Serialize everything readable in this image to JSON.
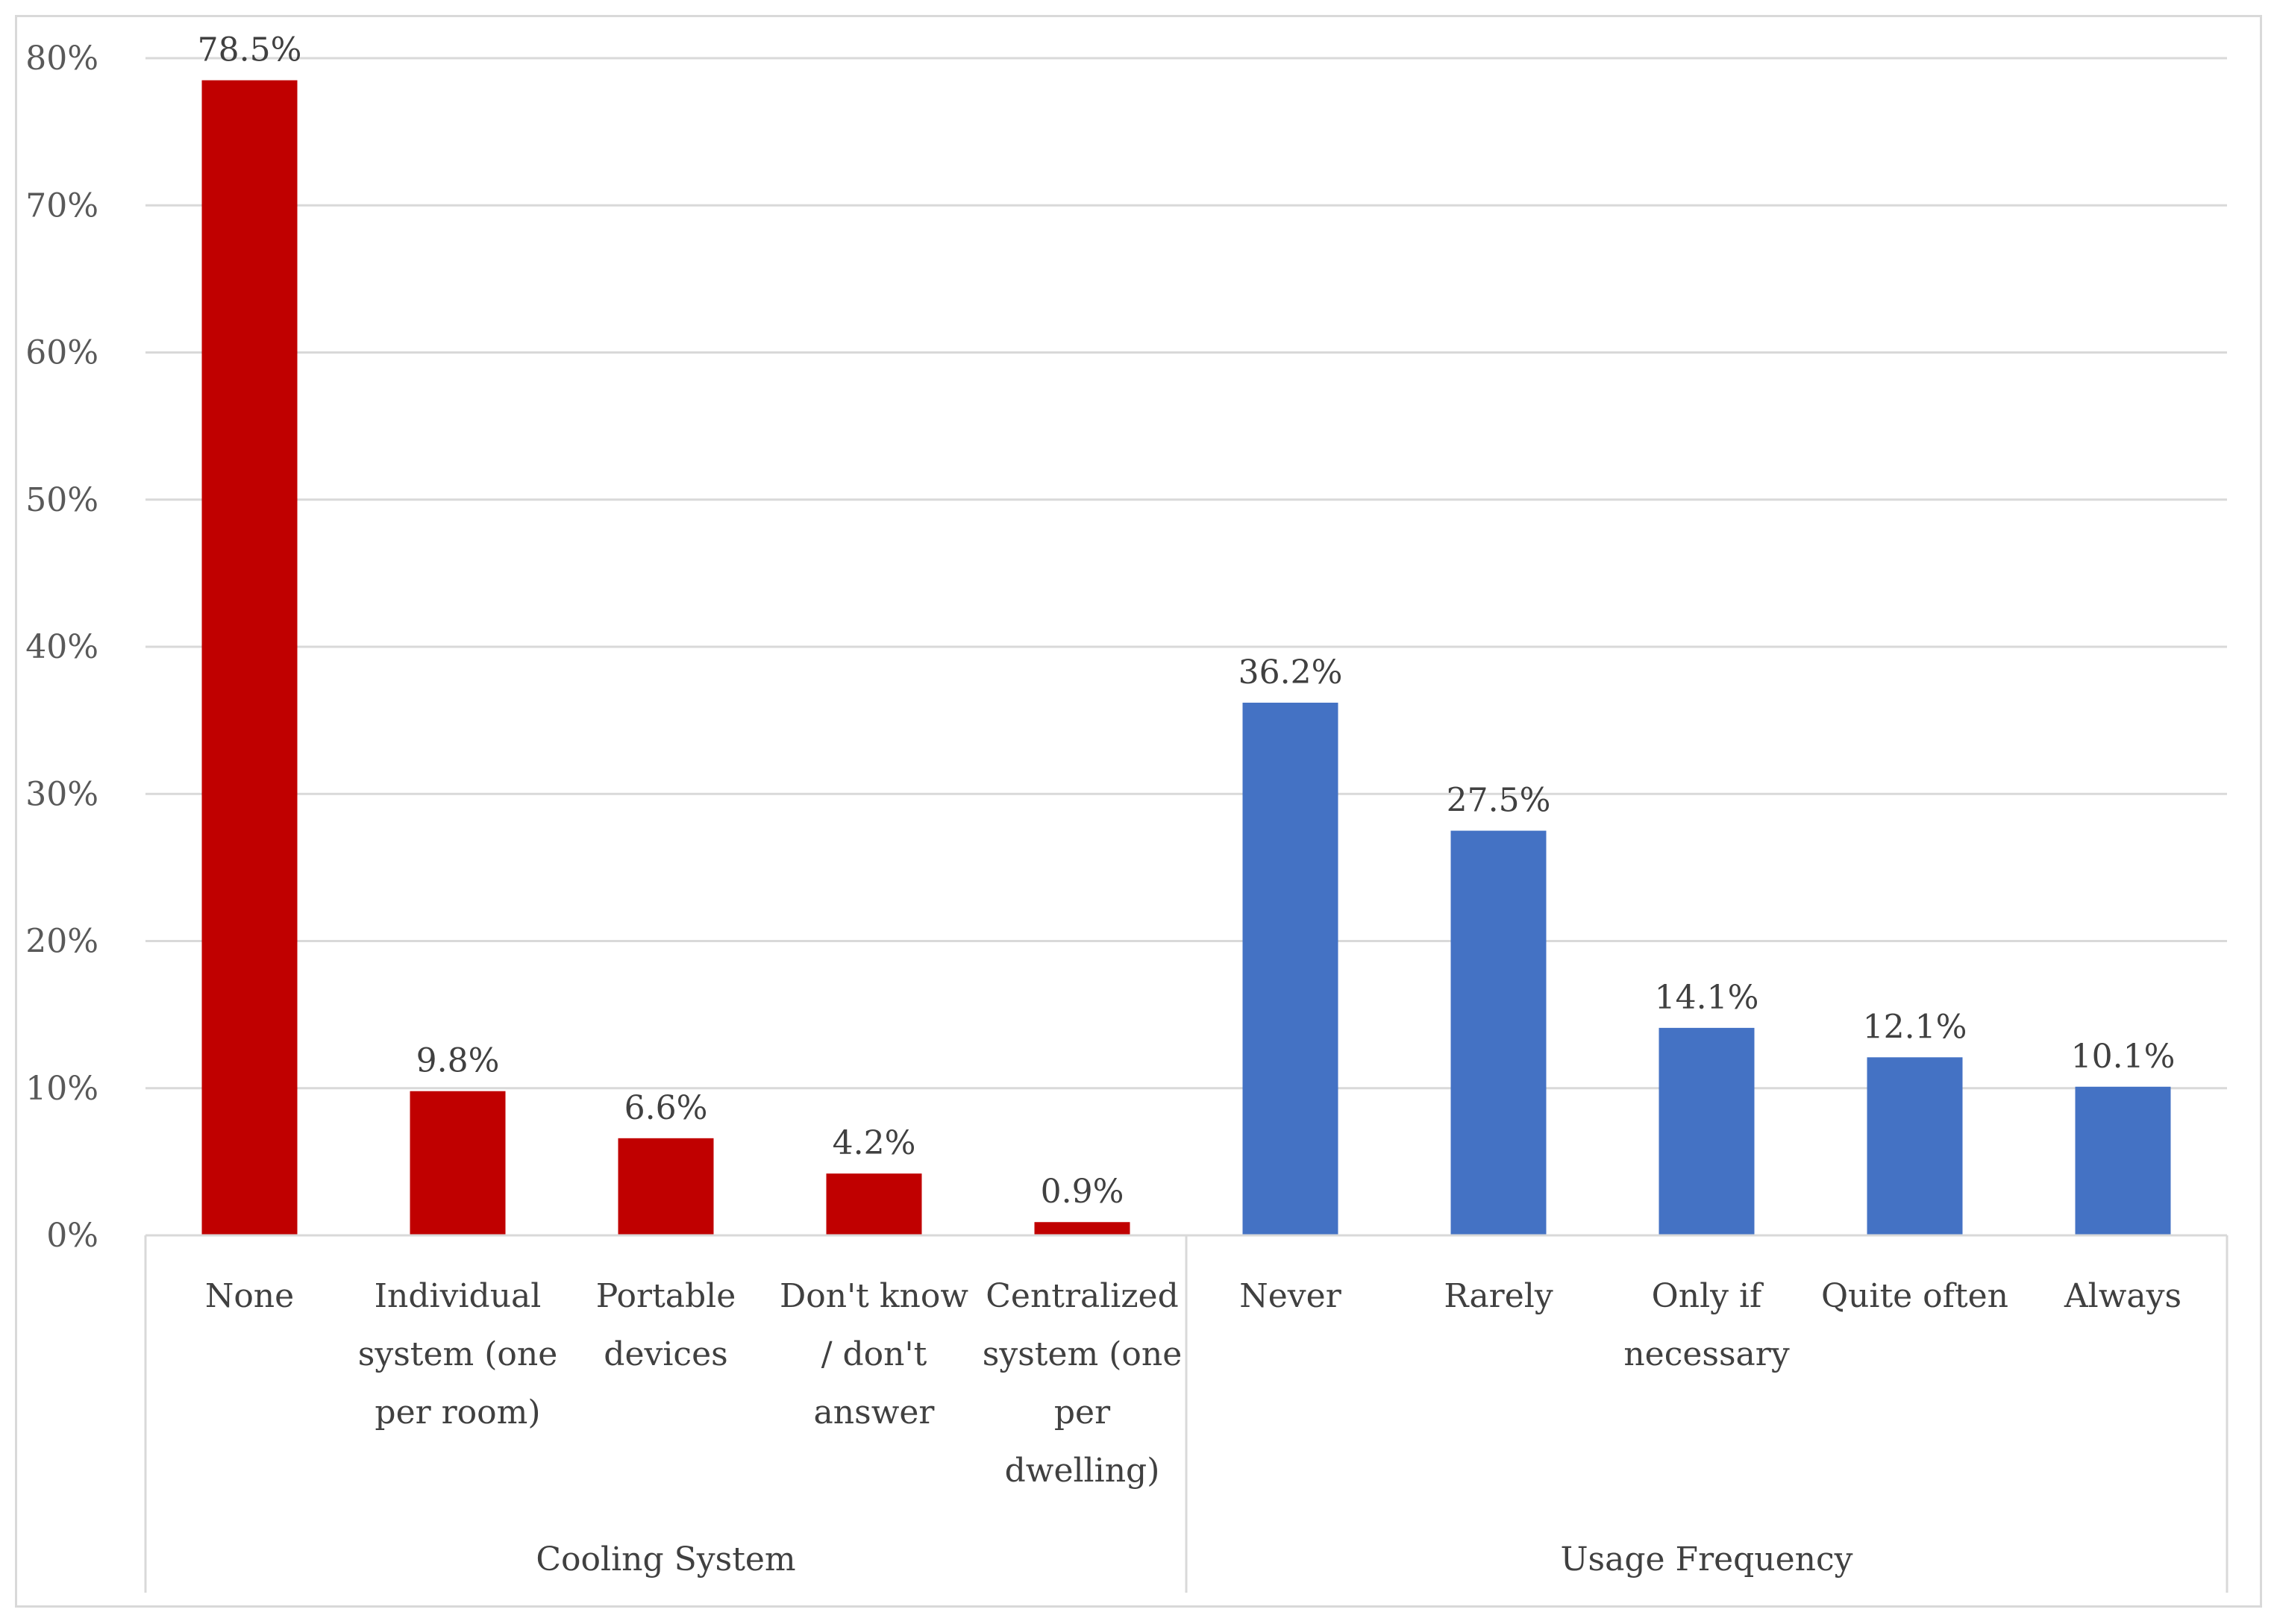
{
  "chart_data": {
    "type": "bar",
    "title": "",
    "xlabel": "",
    "ylabel": "",
    "ylim": [
      0,
      80
    ],
    "y_ticks": [
      "0%",
      "10%",
      "20%",
      "30%",
      "40%",
      "50%",
      "60%",
      "70%",
      "80%"
    ],
    "y_tick_values": [
      0,
      10,
      20,
      30,
      40,
      50,
      60,
      70,
      80
    ],
    "grid": true,
    "legend": "none",
    "groups": [
      {
        "name": "Cooling System",
        "color": "#c00000",
        "categories": [
          [
            "None"
          ],
          [
            "Individual",
            "system (one",
            "per room)"
          ],
          [
            "Portable",
            "devices"
          ],
          [
            "Don't know",
            "/ don't",
            "answer"
          ],
          [
            "Centralized",
            "system (one",
            "per",
            "dwelling)"
          ]
        ],
        "values": [
          78.5,
          9.8,
          6.6,
          4.2,
          0.9
        ],
        "labels": [
          "78.5%",
          "9.8%",
          "6.6%",
          "4.2%",
          "0.9%"
        ]
      },
      {
        "name": "Usage Frequency",
        "color": "#4472c4",
        "categories": [
          [
            "Never"
          ],
          [
            "Rarely"
          ],
          [
            "Only if",
            "necessary"
          ],
          [
            "Quite often"
          ],
          [
            "Always"
          ]
        ],
        "values": [
          36.2,
          27.5,
          14.1,
          12.1,
          10.1
        ],
        "labels": [
          "36.2%",
          "27.5%",
          "14.1%",
          "12.1%",
          "10.1%"
        ]
      }
    ]
  }
}
